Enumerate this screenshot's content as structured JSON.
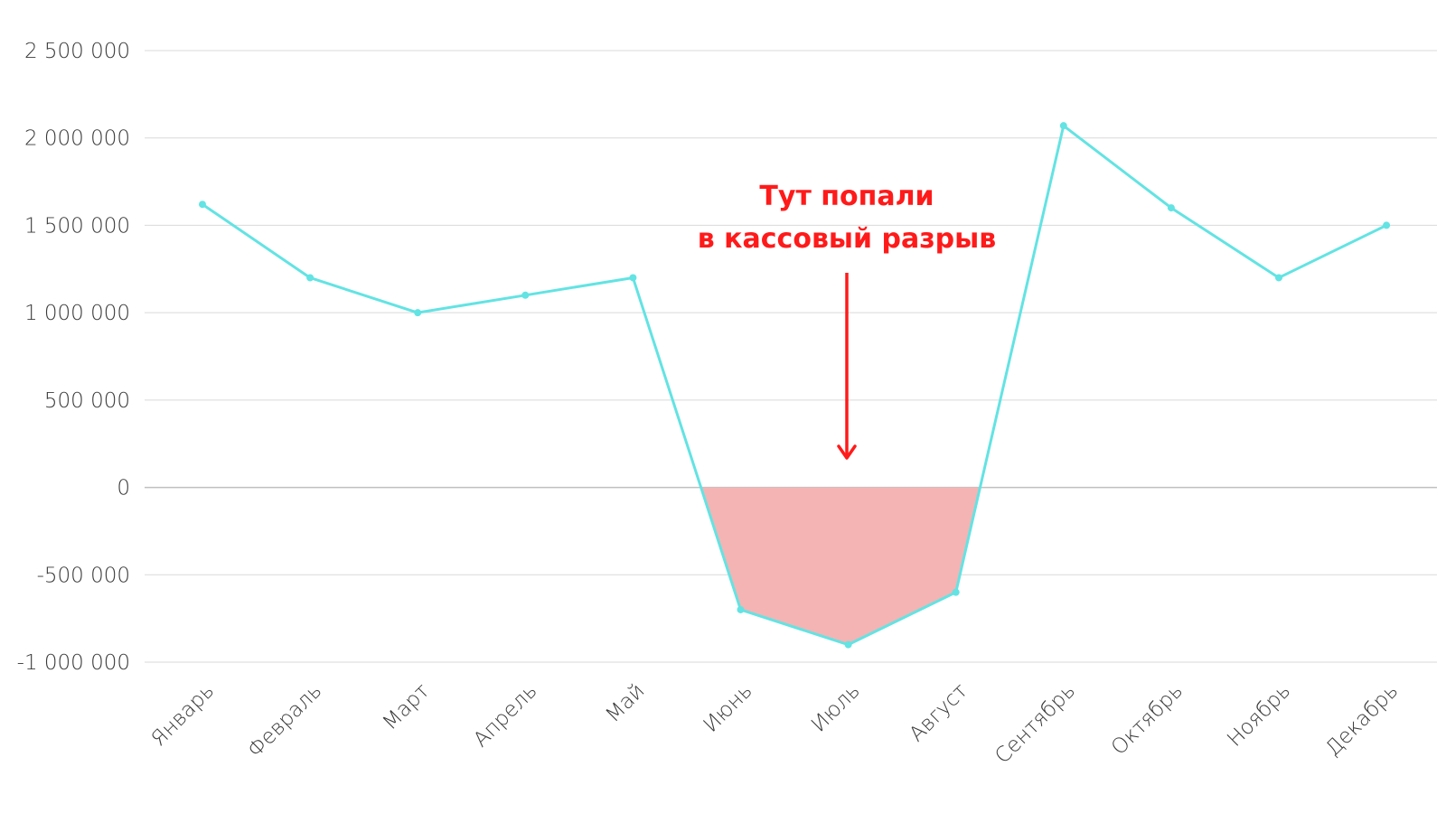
{
  "chart_data": {
    "type": "line",
    "title": "",
    "xlabel": "",
    "ylabel": "",
    "categories": [
      "Январь",
      "Февраль",
      "Март",
      "Апрель",
      "Май",
      "Июнь",
      "Июль",
      "Август",
      "Сентябрь",
      "Октябрь",
      "Ноябрь",
      "Декабрь"
    ],
    "series": [
      {
        "values": [
          1620000,
          1200000,
          1000000,
          1100000,
          1200000,
          -700000,
          -900000,
          -600000,
          2070000,
          1600000,
          1200000,
          1500000
        ]
      }
    ],
    "ylim": [
      -1000000,
      2500000
    ],
    "yticks": [
      2500000,
      2000000,
      1500000,
      1000000,
      500000,
      0,
      -500000,
      -1000000
    ],
    "ytick_labels": [
      "2 500 000",
      "2 000 000",
      "1 500 000",
      "1 000 000",
      "500 000",
      "0",
      "-500 000",
      "-1 000 000"
    ],
    "grid": true,
    "negative_region_shaded": true,
    "colors": {
      "line": "#63e3e3",
      "fill_negative": "#f4b4b4",
      "annotation": "#ff1a1a",
      "grid": "#d9d9d9",
      "zero_line": "#bfbfbf"
    },
    "annotation": {
      "lines": [
        "Тут попали",
        "в кассовый разрыв"
      ],
      "arrow": "down",
      "target_category": "Июль"
    }
  }
}
